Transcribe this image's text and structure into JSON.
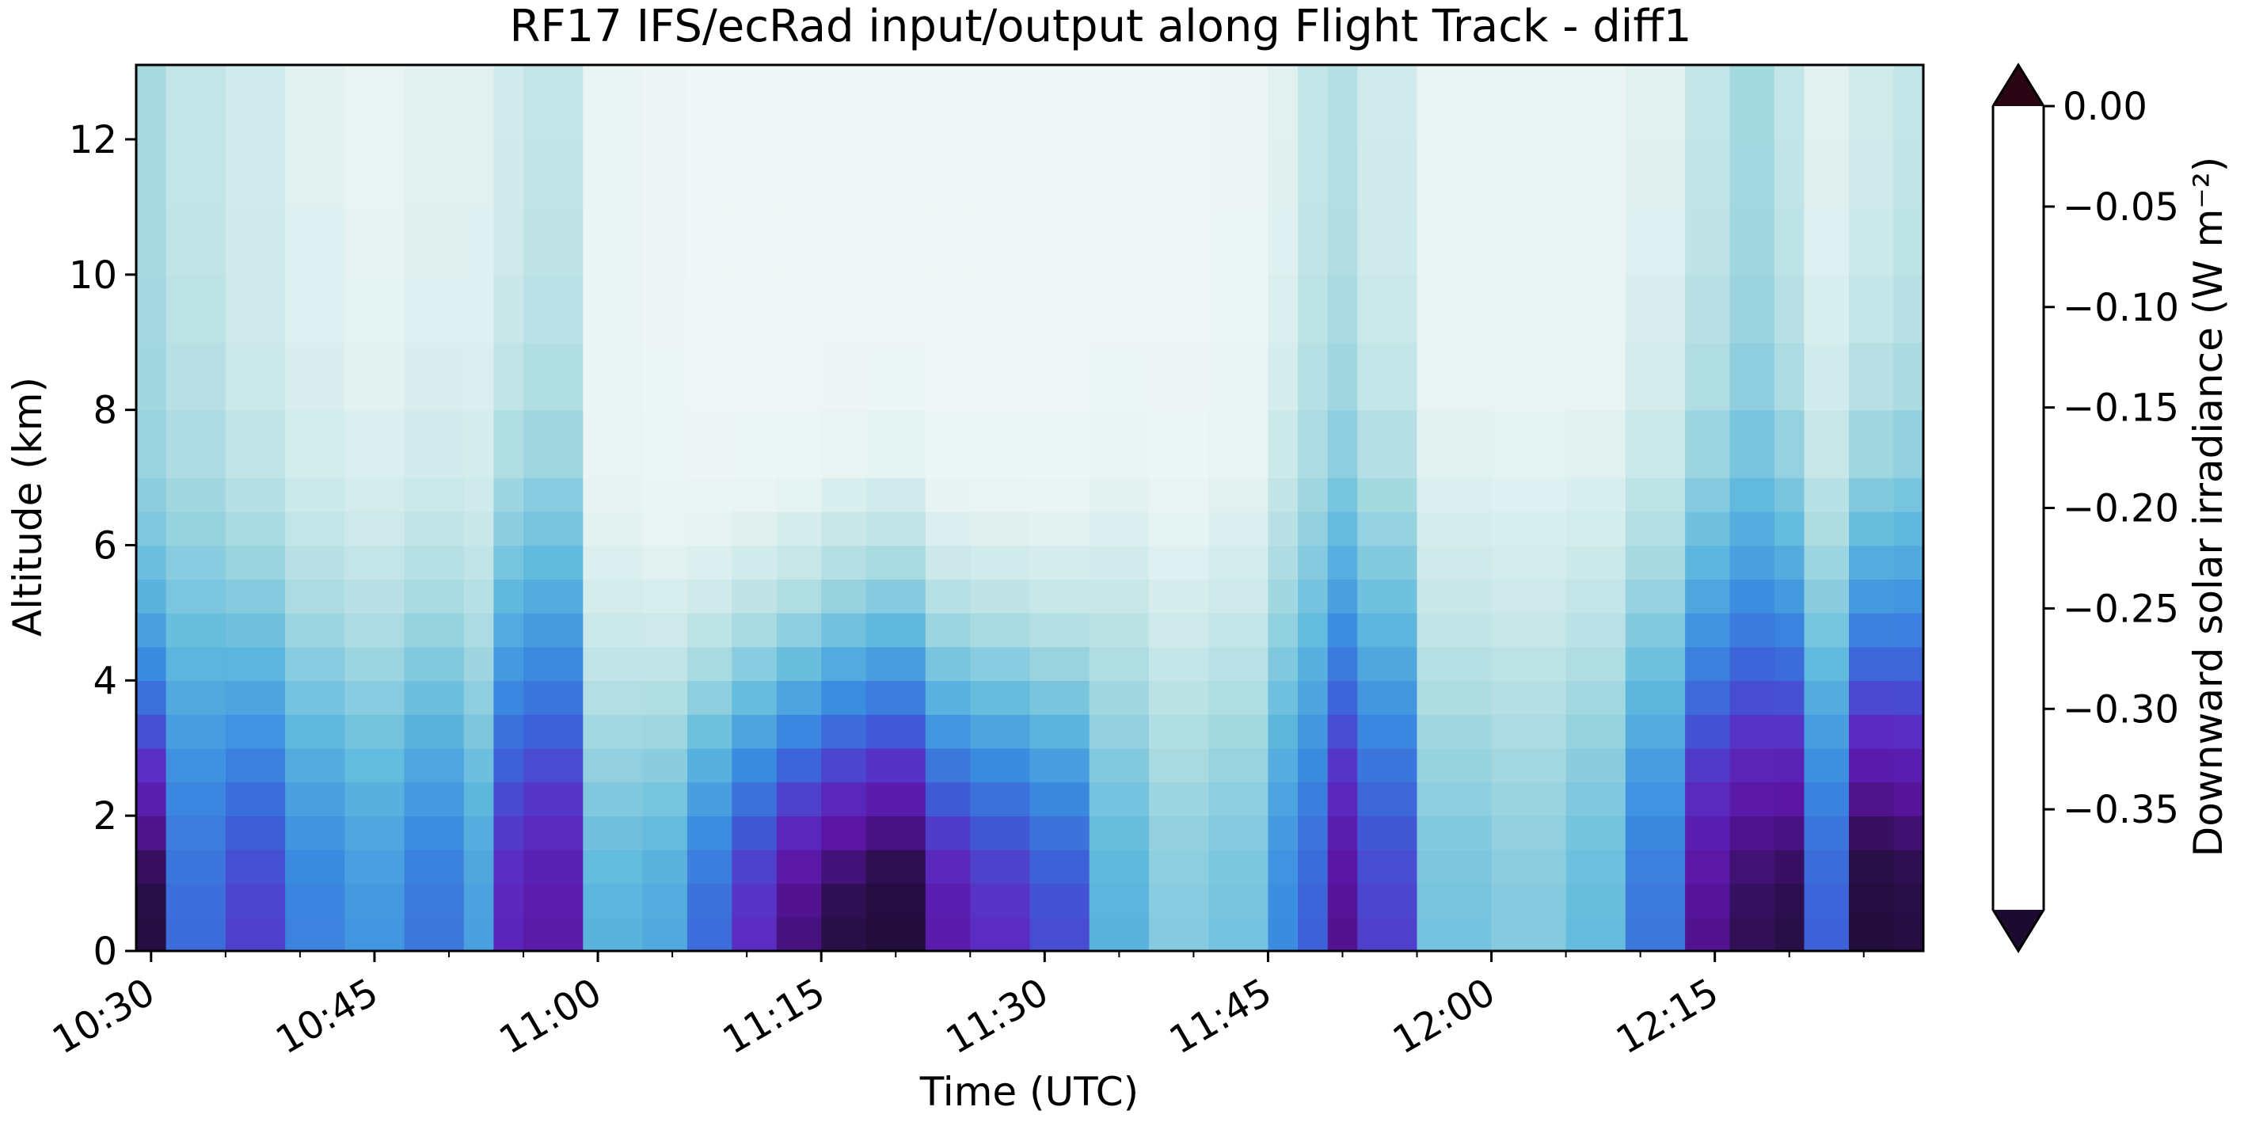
{
  "chart_data": {
    "type": "heatmap",
    "title": "RF17 IFS/ecRad input/output along Flight Track - diff1",
    "xlabel": "Time (UTC)",
    "ylabel": "Altitude (km)",
    "colorbar_label": "Downward solar irradiance (W m⁻²)",
    "x_ticks": [
      "10:30",
      "10:45",
      "11:00",
      "11:15",
      "11:30",
      "11:45",
      "12:00",
      "12:15"
    ],
    "y_ticks": [
      "0",
      "2",
      "4",
      "6",
      "8",
      "10",
      "12"
    ],
    "colorbar_ticks": [
      "0.00",
      "−0.05",
      "−0.10",
      "−0.15",
      "−0.20",
      "−0.25",
      "−0.30",
      "−0.35"
    ],
    "colorbar_extend": "both",
    "xlim": [
      "10:29",
      "12:29"
    ],
    "ylim": [
      0,
      13.1
    ],
    "altitude_levels_km": [
      0,
      0.5,
      1,
      1.5,
      2,
      2.5,
      3,
      3.5,
      4,
      4.5,
      5,
      5.5,
      6,
      6.5,
      7,
      8,
      9,
      10,
      11,
      12,
      13.1
    ],
    "times": [
      "10:29",
      "10:31",
      "10:35",
      "10:39",
      "10:43",
      "10:47",
      "10:51",
      "10:53",
      "10:55",
      "10:59",
      "11:03",
      "11:06",
      "11:09",
      "11:12",
      "11:15",
      "11:18",
      "11:22",
      "11:25",
      "11:29",
      "11:33",
      "11:37",
      "11:41",
      "11:45",
      "11:47",
      "11:49",
      "11:51",
      "11:55",
      "12:00",
      "12:05",
      "12:09",
      "12:13",
      "12:16",
      "12:19",
      "12:21",
      "12:24",
      "12:27",
      "12:29"
    ],
    "profiles": [
      {
        "time": "10:29",
        "surface": -0.37,
        "decay": 4.0,
        "top": -0.09
      },
      {
        "time": "10:31",
        "surface": -0.21,
        "decay": 5.0,
        "top": -0.07
      },
      {
        "time": "10:35",
        "surface": -0.25,
        "decay": 4.5,
        "top": -0.06
      },
      {
        "time": "10:39",
        "surface": -0.19,
        "decay": 4.5,
        "top": -0.05
      },
      {
        "time": "10:43",
        "surface": -0.17,
        "decay": 4.5,
        "top": -0.045
      },
      {
        "time": "10:47",
        "surface": -0.2,
        "decay": 4.5,
        "top": -0.05
      },
      {
        "time": "10:51",
        "surface": -0.16,
        "decay": 4.5,
        "top": -0.05
      },
      {
        "time": "10:53",
        "surface": -0.28,
        "decay": 5.0,
        "top": -0.06
      },
      {
        "time": "10:55",
        "surface": -0.3,
        "decay": 5.0,
        "top": -0.07
      },
      {
        "time": "10:59",
        "surface": -0.14,
        "decay": 4.0,
        "top": -0.04
      },
      {
        "time": "11:03",
        "surface": -0.15,
        "decay": 4.0,
        "top": -0.035
      },
      {
        "time": "11:06",
        "surface": -0.21,
        "decay": 4.0,
        "top": -0.03
      },
      {
        "time": "11:09",
        "surface": -0.27,
        "decay": 4.0,
        "top": -0.03
      },
      {
        "time": "11:12",
        "surface": -0.33,
        "decay": 4.0,
        "top": -0.03
      },
      {
        "time": "11:15",
        "surface": -0.36,
        "decay": 4.2,
        "top": -0.03
      },
      {
        "time": "11:18",
        "surface": -0.38,
        "decay": 4.3,
        "top": -0.03
      },
      {
        "time": "11:22",
        "surface": -0.3,
        "decay": 4.0,
        "top": -0.03
      },
      {
        "time": "11:25",
        "surface": -0.27,
        "decay": 4.0,
        "top": -0.03
      },
      {
        "time": "11:29",
        "surface": -0.24,
        "decay": 4.0,
        "top": -0.03
      },
      {
        "time": "11:33",
        "surface": -0.14,
        "decay": 5.0,
        "top": -0.03
      },
      {
        "time": "11:37",
        "surface": -0.11,
        "decay": 5.0,
        "top": -0.03
      },
      {
        "time": "11:41",
        "surface": -0.12,
        "decay": 5.0,
        "top": -0.035
      },
      {
        "time": "11:45",
        "surface": -0.18,
        "decay": 5.0,
        "top": -0.05
      },
      {
        "time": "11:47",
        "surface": -0.22,
        "decay": 5.0,
        "top": -0.07
      },
      {
        "time": "11:49",
        "surface": -0.32,
        "decay": 5.0,
        "top": -0.08
      },
      {
        "time": "11:51",
        "surface": -0.25,
        "decay": 5.0,
        "top": -0.06
      },
      {
        "time": "11:55",
        "surface": -0.12,
        "decay": 5.0,
        "top": -0.04
      },
      {
        "time": "12:00",
        "surface": -0.11,
        "decay": 5.0,
        "top": -0.04
      },
      {
        "time": "12:05",
        "surface": -0.13,
        "decay": 5.0,
        "top": -0.04
      },
      {
        "time": "12:09",
        "surface": -0.2,
        "decay": 5.0,
        "top": -0.05
      },
      {
        "time": "12:13",
        "surface": -0.32,
        "decay": 5.0,
        "top": -0.07
      },
      {
        "time": "12:16",
        "surface": -0.35,
        "decay": 5.0,
        "top": -0.09
      },
      {
        "time": "12:19",
        "surface": -0.36,
        "decay": 5.0,
        "top": -0.07
      },
      {
        "time": "12:21",
        "surface": -0.22,
        "decay": 5.0,
        "top": -0.05
      },
      {
        "time": "12:24",
        "surface": -0.38,
        "decay": 5.0,
        "top": -0.06
      },
      {
        "time": "12:27",
        "surface": -0.37,
        "decay": 5.0,
        "top": -0.07
      },
      {
        "time": "12:29",
        "surface": -0.34,
        "decay": 5.0,
        "top": -0.07
      }
    ],
    "colormap": [
      "#ffffff",
      "#e8f4f2",
      "#a8dae0",
      "#5fb9dd",
      "#3b8ee0",
      "#3d5fd8",
      "#5a2dc4",
      "#5a14a0",
      "#2a0f4a",
      "#1a0a2e"
    ],
    "extend_colors": {
      "over": "#2a0614",
      "under": "#1c0a30"
    }
  }
}
